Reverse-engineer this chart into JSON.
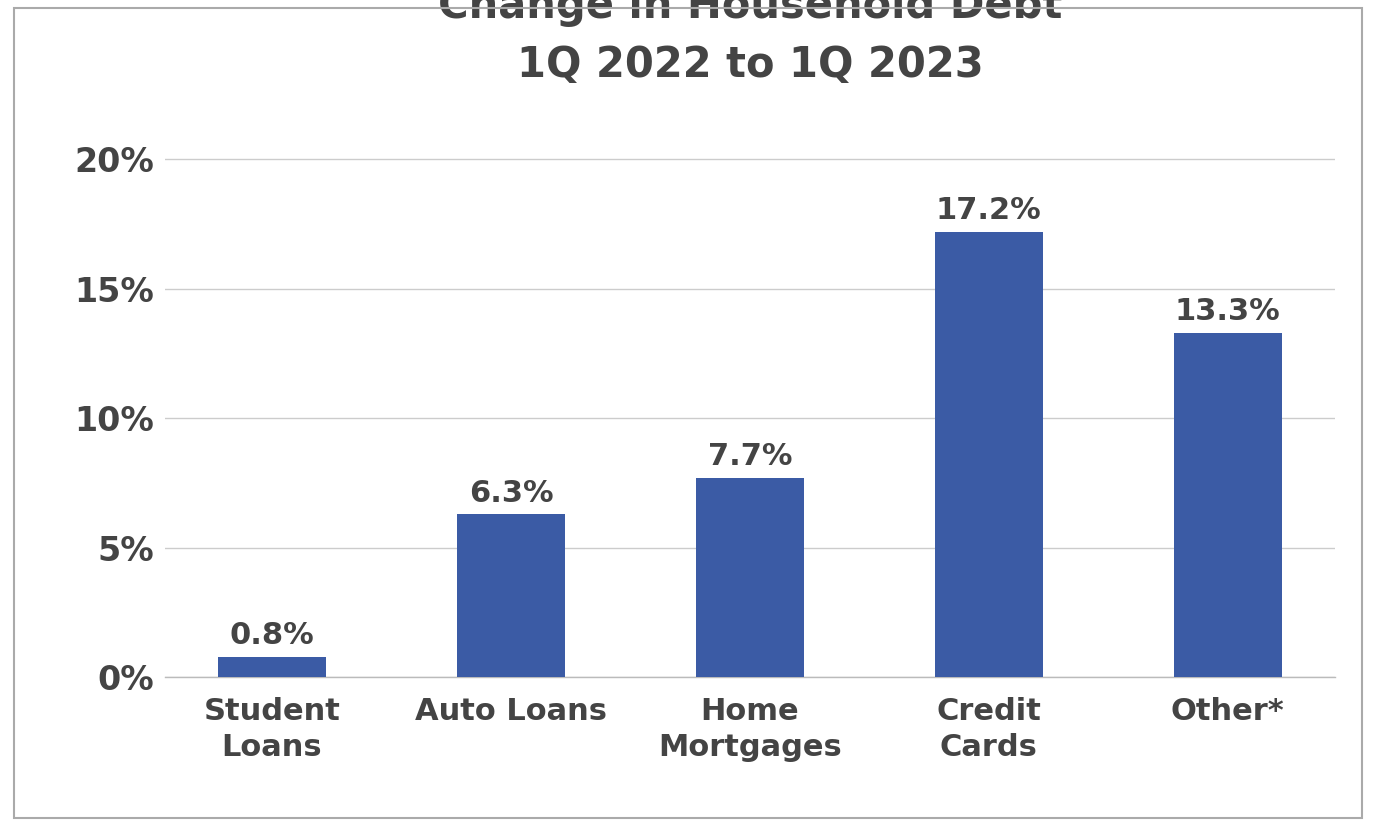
{
  "title_line1": "Change in Household Debt",
  "title_line2": "1Q 2022 to 1Q 2023",
  "categories": [
    "Student\nLoans",
    "Auto Loans",
    "Home\nMortgages",
    "Credit\nCards",
    "Other*"
  ],
  "values": [
    0.8,
    6.3,
    7.7,
    17.2,
    13.3
  ],
  "labels": [
    "0.8%",
    "6.3%",
    "7.7%",
    "17.2%",
    "13.3%"
  ],
  "bar_color": "#3B5BA5",
  "background_color": "#FFFFFF",
  "border_color": "#AAAAAA",
  "ylim": [
    0,
    22
  ],
  "yticks": [
    0,
    5,
    10,
    15,
    20
  ],
  "ytick_labels": [
    "0%",
    "5%",
    "10%",
    "15%",
    "20%"
  ],
  "title_fontsize": 30,
  "tick_label_fontsize": 24,
  "bar_label_fontsize": 22,
  "xlabel_fontsize": 22,
  "grid_color": "#CCCCCC",
  "bar_width": 0.45,
  "text_color": "#444444"
}
